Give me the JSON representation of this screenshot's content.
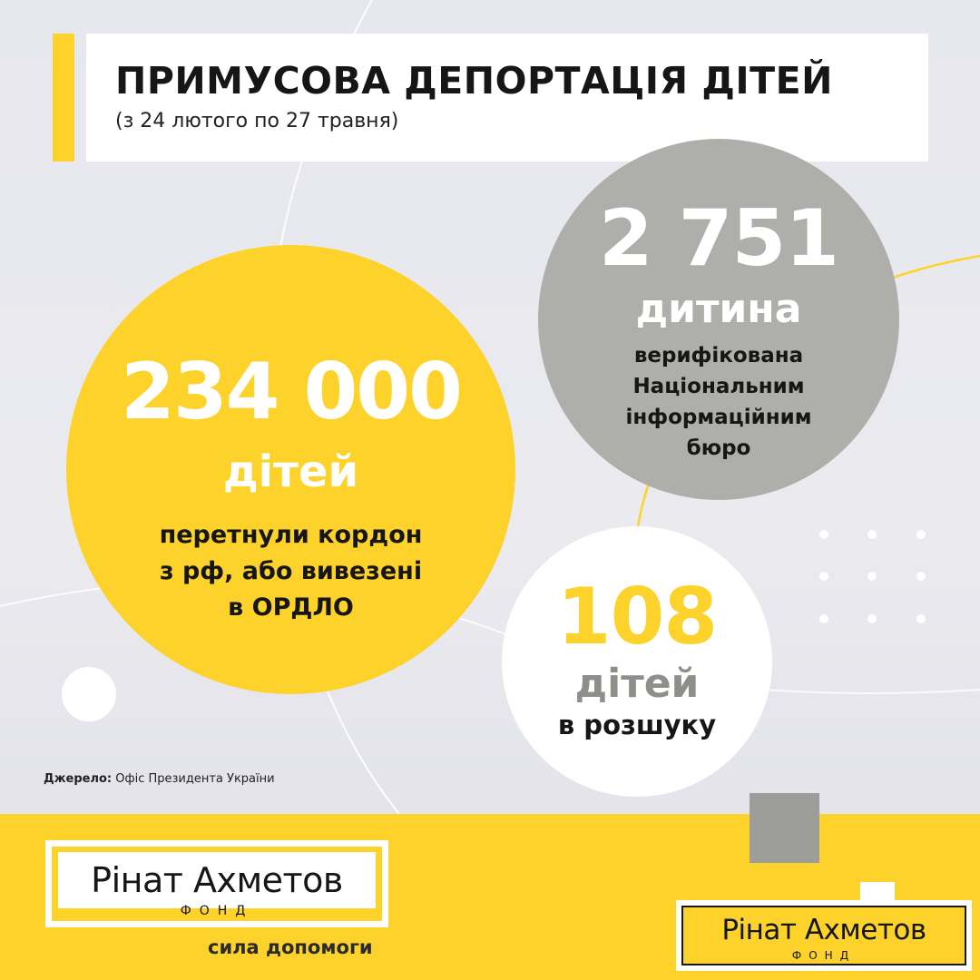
{
  "header": {
    "title": "ПРИМУСОВА ДЕПОРТАЦІЯ ДІТЕЙ",
    "subtitle": "(з 24 лютого по 27 травня)"
  },
  "stats": {
    "crossed_border": {
      "number": "234 000",
      "unit": "дітей",
      "description_lines": [
        "перетнули кордон",
        "з рф, або вивезені",
        "в ОРДЛО"
      ]
    },
    "verified": {
      "number": "2 751",
      "unit": "дитина",
      "description_lines": [
        "верифікована",
        "Національним",
        "інформаційним",
        "бюро"
      ]
    },
    "missing": {
      "number": "108",
      "unit": "дітей",
      "description": "в розшуку"
    }
  },
  "source": {
    "label": "Джерело:",
    "value": "Офіс Президента України"
  },
  "footer": {
    "logo_name": "Рінат Ахметов",
    "logo_fund": "ФОНД",
    "tagline": "сила допомоги"
  },
  "colors": {
    "accent_yellow": "#fdd22a",
    "gray": "#aeaeaa",
    "text_dark": "#161616"
  }
}
